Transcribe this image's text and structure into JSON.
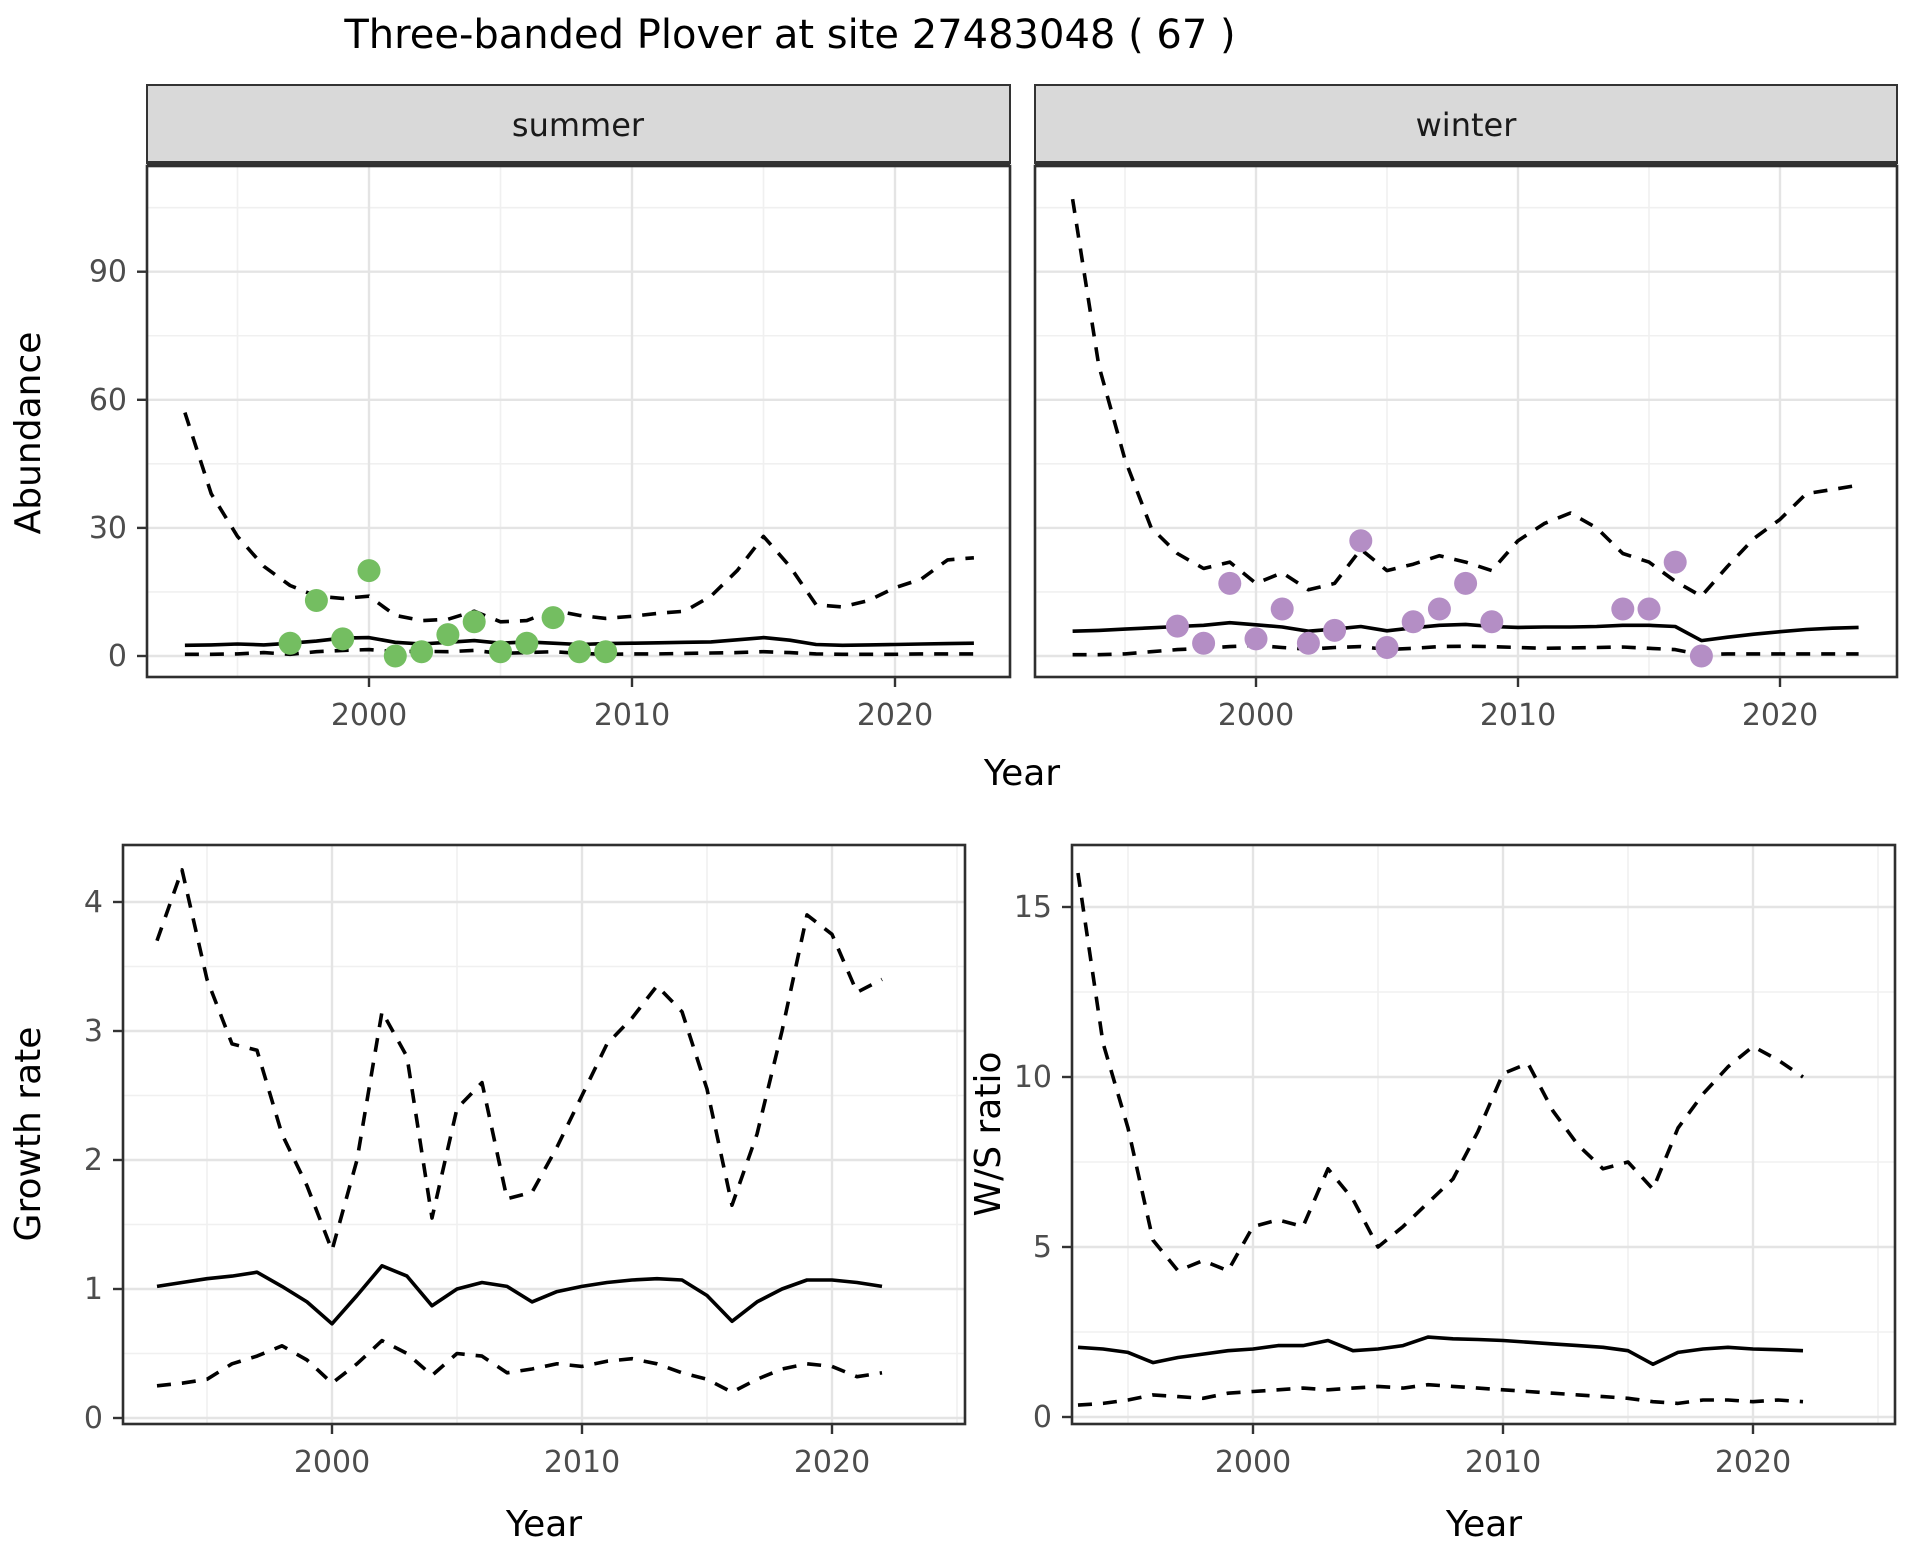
{
  "title": "Three-banded Plover at site 27483048 ( 67 )",
  "labels": {
    "strip_summer": "summer",
    "strip_winter": "winter",
    "y_top": "Abundance",
    "x_top": "Year",
    "y_growth": "Growth rate",
    "y_ws": "W/S ratio",
    "x_bottom_left": "Year",
    "x_bottom_right": "Year"
  },
  "colors": {
    "point_summer": "#74BE61",
    "point_winter": "#B48EC5",
    "line": "#000000",
    "strip_bg": "#D9D9D9",
    "grid_major": "#E4E4E4",
    "grid_minor": "#F0F0F0",
    "panel_border": "#2F2F2F",
    "tick_mark": "#333333",
    "tick_text": "#4D4D4D",
    "background": "#FFFFFF"
  },
  "chart_data": [
    {
      "type": "line",
      "panel": "summer",
      "title": "summer",
      "xlabel": "Year",
      "ylabel": "Abundance",
      "x_ticks": [
        2000,
        2010,
        2020
      ],
      "y_ticks": [
        0,
        30,
        60,
        90
      ],
      "xlim": [
        1991.6,
        2024.4
      ],
      "ylim": [
        -5,
        112
      ],
      "show_y_axis": true,
      "grid": true,
      "x": [
        1993,
        1994,
        1995,
        1996,
        1997,
        1998,
        1999,
        2000,
        2001,
        2002,
        2003,
        2004,
        2005,
        2006,
        2007,
        2008,
        2009,
        2010,
        2011,
        2012,
        2013,
        2014,
        2015,
        2016,
        2017,
        2018,
        2019,
        2020,
        2021,
        2022,
        2023
      ],
      "series": [
        {
          "name": "upper CI",
          "style": "dashed",
          "values": [
            57,
            38,
            28,
            21,
            16.5,
            14,
            13.5,
            14,
            9.5,
            8.3,
            8.6,
            10.5,
            8,
            8.3,
            10.7,
            9.5,
            8.8,
            9.3,
            10,
            10.5,
            14,
            20,
            28,
            21,
            12,
            11.5,
            13,
            16,
            18,
            22.5,
            23
          ]
        },
        {
          "name": "median",
          "style": "solid",
          "values": [
            2.5,
            2.6,
            2.8,
            2.6,
            3.0,
            3.5,
            4.2,
            4.3,
            3.2,
            2.8,
            3.2,
            3.6,
            3.0,
            3.3,
            3.0,
            2.7,
            2.9,
            3.0,
            3.1,
            3.2,
            3.3,
            3.8,
            4.3,
            3.7,
            2.7,
            2.5,
            2.6,
            2.7,
            2.8,
            2.9,
            3.0
          ]
        },
        {
          "name": "lower CI",
          "style": "dashed",
          "values": [
            0.4,
            0.4,
            0.5,
            0.8,
            0.4,
            1.0,
            1.3,
            1.5,
            1.0,
            1.1,
            1.0,
            1.3,
            0.6,
            0.8,
            1.0,
            0.6,
            0.4,
            0.5,
            0.5,
            0.6,
            0.7,
            0.8,
            1.0,
            0.8,
            0.5,
            0.4,
            0.4,
            0.4,
            0.5,
            0.5,
            0.5
          ]
        }
      ],
      "points": {
        "color_key": "point_summer",
        "years": [
          1997,
          1998,
          1999,
          2000,
          2001,
          2002,
          2003,
          2004,
          2005,
          2006,
          2007,
          2008,
          2009
        ],
        "values": [
          3,
          13,
          4,
          20,
          0,
          1,
          5,
          8,
          1,
          3,
          9,
          1,
          1
        ]
      }
    },
    {
      "type": "line",
      "panel": "winter",
      "title": "winter",
      "xlabel": "Year",
      "ylabel": "Abundance",
      "x_ticks": [
        2000,
        2010,
        2020
      ],
      "y_ticks": [
        0,
        30,
        60,
        90
      ],
      "xlim": [
        1991.6,
        2024.4
      ],
      "ylim": [
        -5,
        112
      ],
      "show_y_axis": false,
      "grid": true,
      "x": [
        1993,
        1994,
        1995,
        1996,
        1997,
        1998,
        1999,
        2000,
        2001,
        2002,
        2003,
        2004,
        2005,
        2006,
        2007,
        2008,
        2009,
        2010,
        2011,
        2012,
        2013,
        2014,
        2015,
        2016,
        2017,
        2018,
        2019,
        2020,
        2021,
        2022,
        2023
      ],
      "series": [
        {
          "name": "upper CI",
          "style": "dashed",
          "values": [
            107,
            68,
            46,
            30,
            24,
            20.5,
            22,
            17,
            19.5,
            15.5,
            17,
            25,
            20,
            21.5,
            23.5,
            22,
            20,
            27,
            31,
            33.5,
            30,
            24,
            22,
            17.5,
            14,
            21,
            27.5,
            32,
            38,
            39,
            40
          ]
        },
        {
          "name": "median",
          "style": "solid",
          "values": [
            5.8,
            6.0,
            6.3,
            6.6,
            6.9,
            7.2,
            7.8,
            7.3,
            6.8,
            5.8,
            6.3,
            6.9,
            5.9,
            6.6,
            7.2,
            7.4,
            6.9,
            6.7,
            6.8,
            6.8,
            6.9,
            7.2,
            7.2,
            6.9,
            3.6,
            4.4,
            5.1,
            5.7,
            6.2,
            6.5,
            6.7
          ]
        },
        {
          "name": "lower CI",
          "style": "dashed",
          "values": [
            0.3,
            0.3,
            0.5,
            1.0,
            1.5,
            1.8,
            2.2,
            2.5,
            2.0,
            1.6,
            2.0,
            2.2,
            1.5,
            1.8,
            2.2,
            2.3,
            2.2,
            2.0,
            1.8,
            1.9,
            2.0,
            2.1,
            1.8,
            1.5,
            0.3,
            0.5,
            0.5,
            0.5,
            0.5,
            0.5,
            0.5
          ]
        }
      ],
      "points": {
        "color_key": "point_winter",
        "years": [
          1997,
          1998,
          1999,
          2000,
          2001,
          2002,
          2003,
          2004,
          2005,
          2006,
          2007,
          2008,
          2009,
          2014,
          2015,
          2016,
          2017
        ],
        "values": [
          7,
          3,
          17,
          4,
          11,
          3,
          6,
          27,
          2,
          8,
          11,
          17,
          8,
          11,
          11,
          22,
          0
        ]
      }
    },
    {
      "type": "line",
      "panel": "growth",
      "title": "Growth rate",
      "xlabel": "Year",
      "ylabel": "Growth rate",
      "x_ticks": [
        2000,
        2010,
        2020
      ],
      "y_ticks": [
        0,
        1,
        2,
        3,
        4
      ],
      "xlim": [
        1991.6,
        2025.3
      ],
      "ylim": [
        0,
        4.5
      ],
      "show_y_axis": true,
      "grid": true,
      "x": [
        1993,
        1994,
        1995,
        1996,
        1997,
        1998,
        1999,
        2000,
        2001,
        2002,
        2003,
        2004,
        2005,
        2006,
        2007,
        2008,
        2009,
        2010,
        2011,
        2012,
        2013,
        2014,
        2015,
        2016,
        2017,
        2018,
        2019,
        2020,
        2021,
        2022
      ],
      "series": [
        {
          "name": "upper CI",
          "style": "dashed",
          "values": [
            3.7,
            4.25,
            3.4,
            2.9,
            2.85,
            2.2,
            1.8,
            1.3,
            2.0,
            3.15,
            2.8,
            1.55,
            2.4,
            2.6,
            1.7,
            1.75,
            2.1,
            2.5,
            2.9,
            3.1,
            3.35,
            3.15,
            2.55,
            1.65,
            2.2,
            3.0,
            3.9,
            3.75,
            3.3,
            3.4
          ]
        },
        {
          "name": "median",
          "style": "solid",
          "values": [
            1.02,
            1.05,
            1.08,
            1.1,
            1.13,
            1.02,
            0.9,
            0.73,
            0.95,
            1.18,
            1.1,
            0.87,
            1.0,
            1.05,
            1.02,
            0.9,
            0.98,
            1.02,
            1.05,
            1.07,
            1.08,
            1.07,
            0.95,
            0.75,
            0.9,
            1.0,
            1.07,
            1.07,
            1.05,
            1.02
          ]
        },
        {
          "name": "lower CI",
          "style": "dashed",
          "values": [
            0.25,
            0.27,
            0.3,
            0.42,
            0.48,
            0.56,
            0.45,
            0.27,
            0.42,
            0.6,
            0.5,
            0.33,
            0.5,
            0.48,
            0.35,
            0.38,
            0.42,
            0.4,
            0.44,
            0.46,
            0.42,
            0.35,
            0.3,
            0.2,
            0.3,
            0.38,
            0.42,
            0.4,
            0.32,
            0.35
          ]
        }
      ],
      "points": null
    },
    {
      "type": "line",
      "panel": "ws",
      "title": "W/S ratio",
      "xlabel": "Year",
      "ylabel": "W/S ratio",
      "x_ticks": [
        2000,
        2010,
        2020
      ],
      "y_ticks": [
        0,
        5,
        10,
        15
      ],
      "xlim": [
        1991.6,
        2025.3
      ],
      "ylim": [
        0,
        16.8
      ],
      "show_y_axis": true,
      "grid": true,
      "x": [
        1993,
        1994,
        1995,
        1996,
        1997,
        1998,
        1999,
        2000,
        2001,
        2002,
        2003,
        2004,
        2005,
        2006,
        2007,
        2008,
        2009,
        2010,
        2011,
        2012,
        2013,
        2014,
        2015,
        2016,
        2017,
        2018,
        2019,
        2020,
        2021,
        2022
      ],
      "series": [
        {
          "name": "upper CI",
          "style": "dashed",
          "values": [
            16,
            11,
            8.5,
            5.2,
            4.3,
            4.6,
            4.3,
            5.6,
            5.8,
            5.6,
            7.3,
            6.4,
            5.0,
            5.6,
            6.3,
            7.0,
            8.4,
            10.1,
            10.4,
            9.0,
            8.0,
            7.3,
            7.5,
            6.7,
            8.5,
            9.5,
            10.3,
            10.9,
            10.5,
            10.0
          ]
        },
        {
          "name": "median",
          "style": "solid",
          "values": [
            2.05,
            2.0,
            1.9,
            1.6,
            1.75,
            1.85,
            1.95,
            2.0,
            2.1,
            2.1,
            2.25,
            1.95,
            2.0,
            2.1,
            2.35,
            2.3,
            2.28,
            2.25,
            2.2,
            2.15,
            2.1,
            2.05,
            1.95,
            1.55,
            1.9,
            2.0,
            2.05,
            2.0,
            1.98,
            1.95
          ]
        },
        {
          "name": "lower CI",
          "style": "dashed",
          "values": [
            0.35,
            0.4,
            0.5,
            0.65,
            0.6,
            0.55,
            0.7,
            0.75,
            0.8,
            0.85,
            0.8,
            0.85,
            0.9,
            0.85,
            0.95,
            0.9,
            0.85,
            0.8,
            0.75,
            0.7,
            0.65,
            0.6,
            0.55,
            0.45,
            0.4,
            0.5,
            0.5,
            0.45,
            0.5,
            0.45
          ]
        }
      ],
      "points": null
    }
  ]
}
